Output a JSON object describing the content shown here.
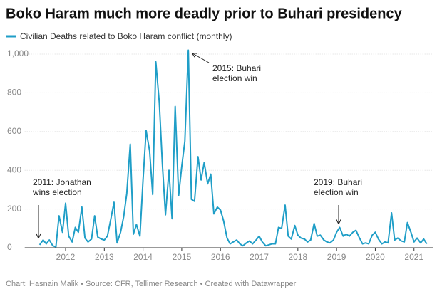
{
  "chart_data": {
    "type": "line",
    "title": "Boko Haram much more deadly prior to Buhari presidency",
    "footer": "Chart: Hasnain Malik • Source: CFR, Tellimer Research • Created with Datawrapper",
    "x": [
      2011.33,
      2011.42,
      2011.5,
      2011.58,
      2011.67,
      2011.75,
      2011.83,
      2011.92,
      2012.0,
      2012.08,
      2012.17,
      2012.25,
      2012.33,
      2012.42,
      2012.5,
      2012.58,
      2012.67,
      2012.75,
      2012.83,
      2012.92,
      2013.0,
      2013.08,
      2013.17,
      2013.25,
      2013.33,
      2013.42,
      2013.5,
      2013.58,
      2013.67,
      2013.75,
      2013.83,
      2013.92,
      2014.0,
      2014.08,
      2014.17,
      2014.25,
      2014.33,
      2014.42,
      2014.5,
      2014.58,
      2014.67,
      2014.75,
      2014.83,
      2014.92,
      2015.0,
      2015.08,
      2015.17,
      2015.25,
      2015.33,
      2015.42,
      2015.5,
      2015.58,
      2015.67,
      2015.75,
      2015.83,
      2015.92,
      2016.0,
      2016.08,
      2016.17,
      2016.25,
      2016.33,
      2016.42,
      2016.5,
      2016.58,
      2016.67,
      2016.75,
      2016.83,
      2016.92,
      2017.0,
      2017.08,
      2017.17,
      2017.25,
      2017.33,
      2017.42,
      2017.5,
      2017.58,
      2017.67,
      2017.75,
      2017.83,
      2017.92,
      2018.0,
      2018.08,
      2018.17,
      2018.25,
      2018.33,
      2018.42,
      2018.5,
      2018.58,
      2018.67,
      2018.75,
      2018.83,
      2018.92,
      2019.0,
      2019.08,
      2019.17,
      2019.25,
      2019.33,
      2019.42,
      2019.5,
      2019.58,
      2019.67,
      2019.75,
      2019.83,
      2019.92,
      2020.0,
      2020.08,
      2020.17,
      2020.25,
      2020.33,
      2020.42,
      2020.5,
      2020.58,
      2020.67,
      2020.75,
      2020.83,
      2020.92,
      2021.0,
      2021.08,
      2021.17,
      2021.25,
      2021.33
    ],
    "series": [
      {
        "name": "Civilian Deaths related to Boko Haram conflict (monthly)",
        "color": "#1f9ec7",
        "values": [
          15,
          40,
          20,
          40,
          10,
          5,
          165,
          80,
          230,
          60,
          30,
          105,
          80,
          210,
          50,
          30,
          45,
          165,
          55,
          45,
          40,
          60,
          150,
          235,
          25,
          80,
          160,
          280,
          535,
          70,
          120,
          60,
          350,
          605,
          500,
          275,
          960,
          750,
          430,
          170,
          400,
          150,
          730,
          270,
          420,
          550,
          1020,
          250,
          240,
          470,
          350,
          440,
          330,
          380,
          175,
          210,
          195,
          140,
          50,
          20,
          30,
          40,
          20,
          10,
          25,
          35,
          20,
          40,
          60,
          30,
          10,
          15,
          20,
          20,
          105,
          100,
          220,
          60,
          45,
          115,
          65,
          50,
          45,
          30,
          40,
          125,
          60,
          65,
          40,
          30,
          25,
          40,
          80,
          105,
          60,
          70,
          60,
          80,
          90,
          55,
          20,
          25,
          20,
          65,
          80,
          45,
          20,
          30,
          25,
          180,
          40,
          50,
          35,
          30,
          130,
          80,
          30,
          50,
          25,
          45,
          20
        ]
      }
    ],
    "xlim": [
      2011,
      2021.5
    ],
    "xticks": [
      2012,
      2013,
      2014,
      2015,
      2016,
      2017,
      2018,
      2019,
      2020,
      2021
    ],
    "ylim": [
      0,
      1000
    ],
    "yticks": [
      0,
      200,
      400,
      600,
      800,
      {
        "value": 1000,
        "label": "1,000"
      }
    ],
    "grid": true,
    "annotations": [
      {
        "lines": [
          "2011: Jonathan",
          "wins election"
        ]
      },
      {
        "lines": [
          "2015: Buhari",
          "election win"
        ]
      },
      {
        "lines": [
          "2019: Buhari",
          "election win"
        ]
      }
    ]
  }
}
